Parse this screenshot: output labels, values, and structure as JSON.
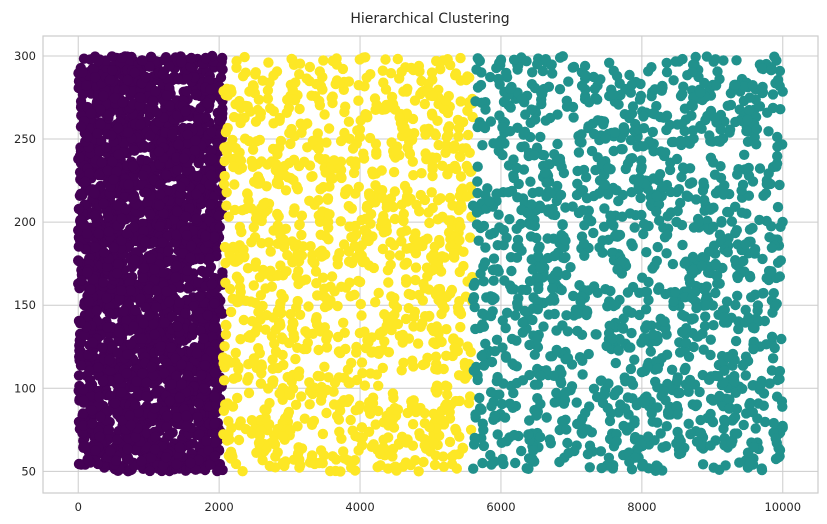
{
  "chart_data": {
    "type": "scatter",
    "title": "Hierarchical Clustering",
    "xlabel": "",
    "ylabel": "",
    "xlim": [
      -500,
      10500
    ],
    "ylim": [
      37,
      312
    ],
    "xticks": [
      0,
      2000,
      4000,
      6000,
      8000,
      10000
    ],
    "yticks": [
      50,
      100,
      150,
      200,
      250,
      300
    ],
    "xtick_labels": [
      "0",
      "2000",
      "4000",
      "6000",
      "8000",
      "10000"
    ],
    "ytick_labels": [
      "50",
      "100",
      "150",
      "200",
      "250",
      "300"
    ],
    "grid": true,
    "legend": "none",
    "clusters": [
      {
        "x_range": [
          0,
          2050
        ],
        "y_range": [
          50,
          300
        ],
        "color": "#440154",
        "point_count": 2600
      },
      {
        "x_range": [
          2050,
          5600
        ],
        "y_range": [
          50,
          300
        ],
        "color": "#fde725",
        "point_count": 1200
      },
      {
        "x_range": [
          5600,
          10000
        ],
        "y_range": [
          50,
          300
        ],
        "color": "#21918c",
        "point_count": 1450
      }
    ]
  }
}
